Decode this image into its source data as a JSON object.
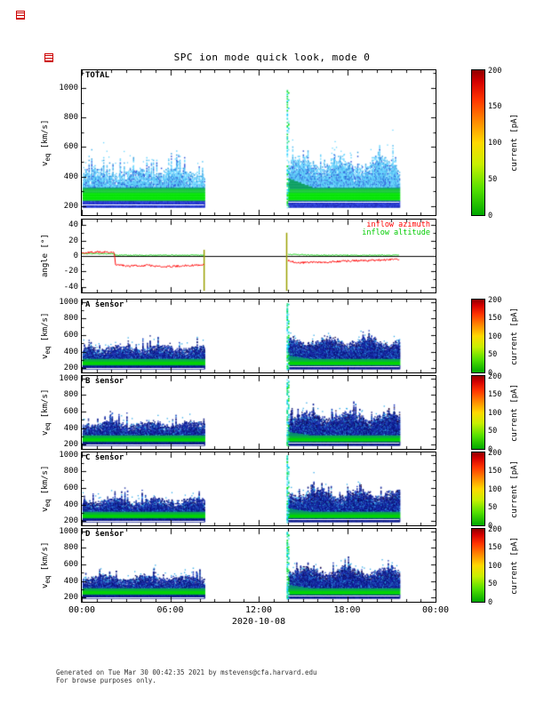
{
  "title": "SPC ion mode quick look, mode 0",
  "x_axis": {
    "ticks": [
      "00:00",
      "06:00",
      "12:00",
      "18:00",
      "00:00"
    ],
    "label": "2020-10-08"
  },
  "colorbar": {
    "label": "current [pA]",
    "ticks": [
      0,
      50,
      100,
      150,
      200
    ],
    "stops": [
      [
        0,
        "#00a800"
      ],
      [
        0.18,
        "#55e000"
      ],
      [
        0.35,
        "#c8f000"
      ],
      [
        0.5,
        "#ffd800"
      ],
      [
        0.65,
        "#ff8800"
      ],
      [
        0.8,
        "#ff3300"
      ],
      [
        0.92,
        "#d40000"
      ],
      [
        1,
        "#8f0000"
      ]
    ]
  },
  "palettes": {
    "bright": {
      "low": [
        "#2233cc",
        "#1a2ab8",
        "#2f46e0"
      ],
      "g0": "#00e400",
      "g1": "#18c838",
      "g2": "#0b9e62",
      "up": [
        "#49b6ee",
        "#5bc8f8",
        "#38a0e0",
        "#6fd8ff",
        "#2b52d8"
      ],
      "cyan": "#66d4ff",
      "cyanFrac": 0.25,
      "maroon": null
    },
    "dark": {
      "low": [
        "#0c1c90",
        "#081275",
        "#13249e"
      ],
      "g0": "#00d400",
      "g1": "#0cb040",
      "g2": "#0a8f70",
      "up": [
        "#12249c",
        "#0a1886",
        "#1b32b0",
        "#060e6a",
        "#223cc0"
      ],
      "cyan": "#2fa8e8",
      "cyanFrac": 0.12,
      "maroon": "#250a3c"
    }
  },
  "footer": {
    "line1": "Generated on Tue Mar 30 00:42:35 2021 by mstevens@cfa.harvard.edu",
    "line2": "For browse purposes only."
  },
  "icons": {
    "annotation_mark": "red-link-annotation-mark"
  },
  "chart_data": [
    {
      "type": "heatmap",
      "id": "total",
      "label": "TOTAL",
      "ylabel": "v_eq [km/s]",
      "ylim": [
        140,
        1120
      ],
      "yticks": [
        200,
        400,
        600,
        800,
        1000
      ],
      "layout": {
        "top": 79,
        "height": 163
      },
      "seed": 3,
      "style": "bright",
      "has_colorbar": true,
      "band": {
        "bottom": 195,
        "coreLow": 235,
        "coreHigh": 330,
        "greenPeak": 268
      },
      "segments": [
        {
          "t0": 0.05,
          "t1": 8.3,
          "top": 440,
          "topJitter": 40,
          "whiteLine": 210
        },
        {
          "t0": 14.0,
          "t1": 21.55,
          "top": 500,
          "topJitter": 60,
          "whiteLine": 228,
          "coreBoost": 60
        }
      ],
      "spike": {
        "t": 13.9,
        "vmax": 1000
      },
      "value_range": [
        0,
        200
      ]
    },
    {
      "type": "line",
      "id": "angle",
      "ylabel": "angle [°]",
      "ylim": [
        -47,
        47
      ],
      "yticks": [
        -40,
        -20,
        0,
        20,
        40
      ],
      "layout": {
        "top": 247,
        "height": 82
      },
      "seed": 5,
      "has_colorbar": false,
      "series": [
        {
          "name": "inflow azimuth",
          "color": "#ff0000",
          "jitter": 2.5,
          "points": [
            [
              0,
              4
            ],
            [
              0.8,
              5
            ],
            [
              1.6,
              5
            ],
            [
              2.2,
              4
            ],
            [
              2.3,
              -11
            ],
            [
              3.2,
              -13
            ],
            [
              4.5,
              -12
            ],
            [
              5.5,
              -14
            ],
            [
              6.5,
              -13
            ],
            [
              7.5,
              -12
            ],
            [
              8.3,
              -11
            ],
            null,
            [
              14.0,
              -6
            ],
            [
              14.6,
              -9
            ],
            [
              15.5,
              -8
            ],
            [
              16.5,
              -8
            ],
            [
              17.5,
              -7
            ],
            [
              18.5,
              -6
            ],
            [
              19.5,
              -6
            ],
            [
              20.5,
              -5
            ],
            [
              21.55,
              -4
            ]
          ]
        },
        {
          "name": "inflow altitude",
          "color": "#00cc00",
          "jitter": 1.2,
          "points": [
            [
              0,
              3
            ],
            [
              1.5,
              3
            ],
            [
              2.2,
              3
            ],
            [
              2.3,
              1
            ],
            [
              5,
              1
            ],
            [
              8.3,
              1
            ],
            null,
            [
              14.0,
              2
            ],
            [
              16,
              1
            ],
            [
              18,
              1
            ],
            [
              21.55,
              1
            ]
          ]
        }
      ],
      "spikes": [
        {
          "t": 8.3,
          "y0": -45,
          "y1": 8
        },
        {
          "t": 13.9,
          "y0": -45,
          "y1": 30
        }
      ],
      "spike_color": "#9aa000"
    },
    {
      "type": "heatmap",
      "id": "a",
      "label": "A sensor",
      "ylabel": "v_eq [km/s]",
      "ylim": [
        150,
        1030
      ],
      "yticks": [
        200,
        400,
        600,
        800,
        1000
      ],
      "layout": {
        "top": 337,
        "height": 82
      },
      "seed": 11,
      "style": "dark",
      "has_colorbar": true,
      "band": {
        "bottom": 195,
        "coreLow": 232,
        "coreHigh": 315,
        "greenPeak": 262
      },
      "segments": [
        {
          "t0": 0.05,
          "t1": 8.3,
          "top": 455,
          "topJitter": 40,
          "whiteLine": 208
        },
        {
          "t0": 14.0,
          "t1": 21.55,
          "top": 535,
          "topJitter": 70,
          "whiteLine": 226,
          "coreBoost": 40
        }
      ],
      "spike": {
        "t": 13.9,
        "vmax": 1000
      },
      "value_range": [
        0,
        200
      ]
    },
    {
      "type": "heatmap",
      "id": "b",
      "label": "B sensor",
      "ylabel": "v_eq [km/s]",
      "ylim": [
        150,
        1030
      ],
      "yticks": [
        200,
        400,
        600,
        800,
        1000
      ],
      "layout": {
        "top": 423,
        "height": 82
      },
      "seed": 12,
      "style": "dark",
      "has_colorbar": true,
      "band": {
        "bottom": 195,
        "coreLow": 232,
        "coreHigh": 315,
        "greenPeak": 262
      },
      "segments": [
        {
          "t0": 0.05,
          "t1": 8.3,
          "top": 460,
          "topJitter": 45,
          "whiteLine": 208
        },
        {
          "t0": 14.0,
          "t1": 21.55,
          "top": 545,
          "topJitter": 75,
          "whiteLine": 226,
          "coreBoost": 40
        }
      ],
      "spike": {
        "t": 13.9,
        "vmax": 1000
      },
      "value_range": [
        0,
        200
      ]
    },
    {
      "type": "heatmap",
      "id": "c",
      "label": "C sensor",
      "ylabel": "v_eq [km/s]",
      "ylim": [
        150,
        1030
      ],
      "yticks": [
        200,
        400,
        600,
        800,
        1000
      ],
      "layout": {
        "top": 509,
        "height": 82
      },
      "seed": 13,
      "style": "dark",
      "has_colorbar": true,
      "band": {
        "bottom": 195,
        "coreLow": 232,
        "coreHigh": 315,
        "greenPeak": 262
      },
      "segments": [
        {
          "t0": 0.05,
          "t1": 8.3,
          "top": 458,
          "topJitter": 45,
          "whiteLine": 208
        },
        {
          "t0": 14.0,
          "t1": 21.55,
          "top": 540,
          "topJitter": 75,
          "whiteLine": 226,
          "coreBoost": 40
        }
      ],
      "spike": {
        "t": 13.9,
        "vmax": 1000
      },
      "value_range": [
        0,
        200
      ]
    },
    {
      "type": "heatmap",
      "id": "d",
      "label": "D sensor",
      "ylabel": "v_eq [km/s]",
      "ylim": [
        150,
        1030
      ],
      "yticks": [
        200,
        400,
        600,
        800,
        1000
      ],
      "layout": {
        "top": 595,
        "height": 82
      },
      "seed": 14,
      "style": "dark",
      "has_colorbar": true,
      "band": {
        "bottom": 195,
        "coreLow": 232,
        "coreHigh": 315,
        "greenPeak": 262
      },
      "segments": [
        {
          "t0": 0.05,
          "t1": 8.3,
          "top": 450,
          "topJitter": 40,
          "whiteLine": 208
        },
        {
          "t0": 14.0,
          "t1": 21.55,
          "top": 530,
          "topJitter": 70,
          "whiteLine": 226,
          "coreBoost": 40
        }
      ],
      "spike": {
        "t": 13.9,
        "vmax": 1000
      },
      "value_range": [
        0,
        200
      ]
    }
  ]
}
